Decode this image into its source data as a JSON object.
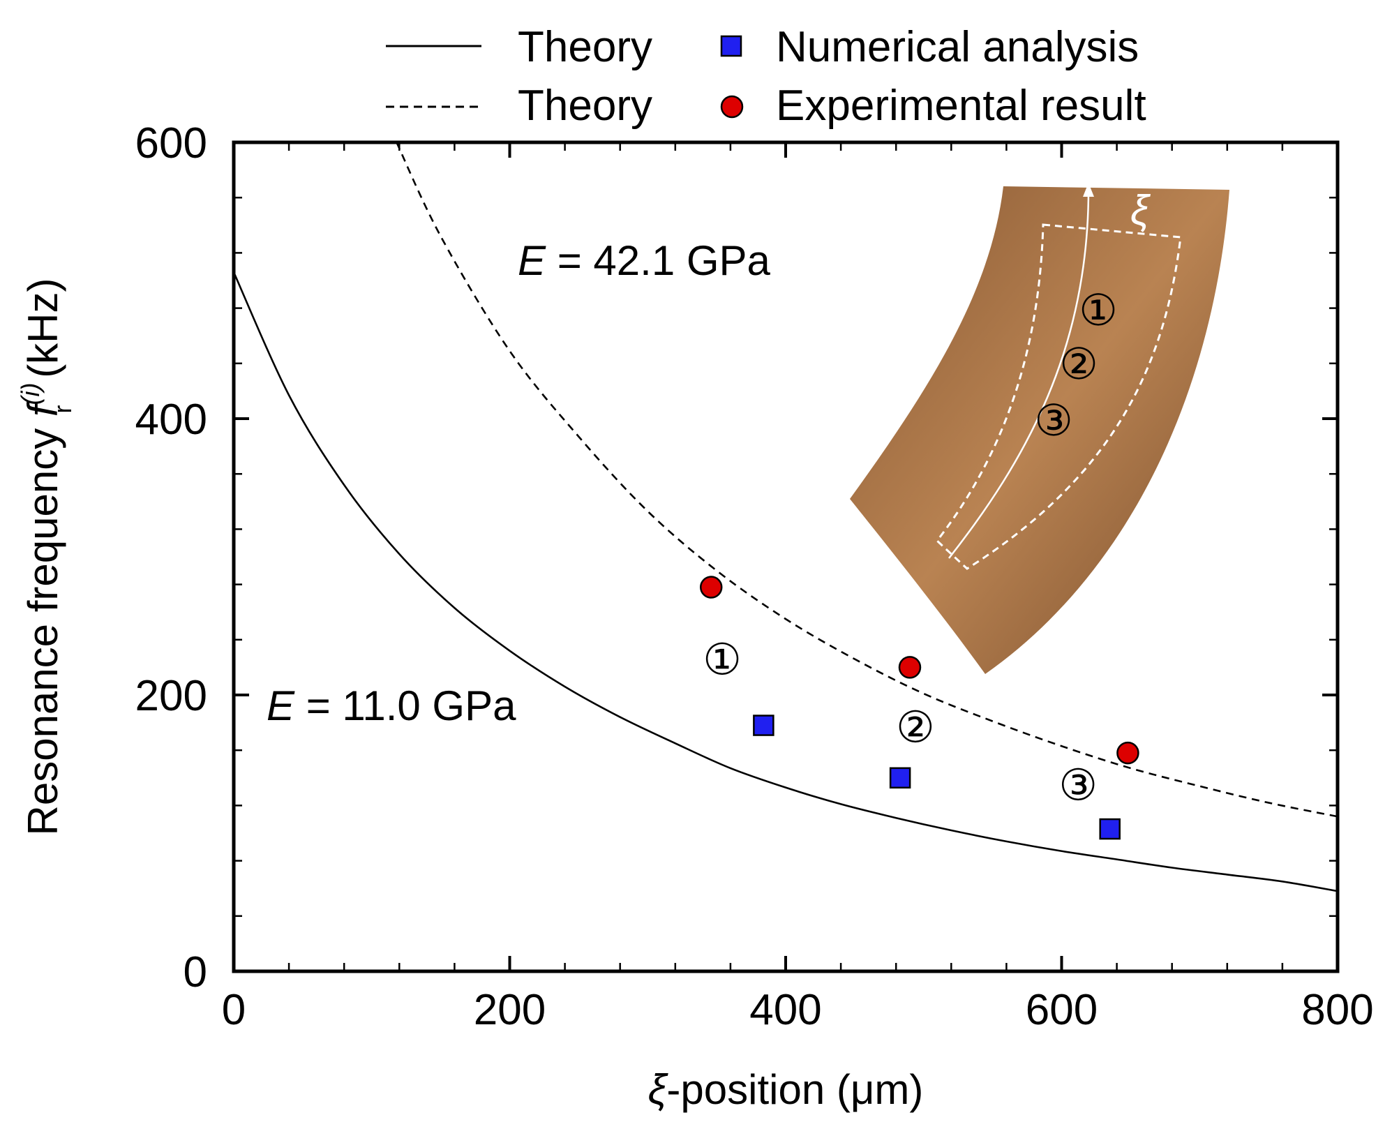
{
  "chart_data": {
    "type": "scatter",
    "xlabel_symbol": "ξ",
    "xlabel_rest": "-position (μm)",
    "ylabel_main": "Resonance frequency ",
    "ylabel_symbol": "f",
    "ylabel_sub": "r",
    "ylabel_sup": "(i)",
    "ylabel_unit": " (kHz)",
    "xlim": [
      0,
      800
    ],
    "ylim": [
      0,
      600
    ],
    "x_ticks": [
      0,
      200,
      400,
      600,
      800
    ],
    "y_ticks": [
      0,
      200,
      400,
      600
    ],
    "x_tick_labels": [
      "0",
      "200",
      "400",
      "600",
      "800"
    ],
    "y_tick_labels": [
      "0",
      "200",
      "400",
      "600"
    ],
    "x_minor_step": 40,
    "y_minor_step": 40,
    "series": [
      {
        "name": "Theory",
        "kind": "line",
        "style": "solid",
        "color": "#000000",
        "label_symbol": "E",
        "label_rest": " = 11.0 GPa",
        "x": [
          0,
          40,
          80,
          120,
          160,
          200,
          240,
          280,
          320,
          360,
          400,
          440,
          480,
          520,
          560,
          600,
          640,
          680,
          720,
          760,
          800
        ],
        "y": [
          506,
          417,
          352,
          302,
          263,
          232,
          206,
          184,
          165,
          147,
          133,
          121,
          111,
          102,
          94,
          87,
          81,
          75,
          70,
          65,
          58
        ]
      },
      {
        "name": "Theory",
        "kind": "line",
        "style": "dashed",
        "color": "#000000",
        "label_symbol": "E",
        "label_rest": " = 42.1 GPa",
        "x": [
          118,
          150,
          200,
          250,
          300,
          350,
          400,
          450,
          500,
          550,
          600,
          650,
          700,
          750,
          800
        ],
        "y": [
          600,
          532,
          449,
          387,
          333,
          290,
          255,
          226,
          201,
          181,
          163,
          147,
          134,
          122,
          112
        ]
      },
      {
        "name": "Numerical analysis",
        "kind": "marker",
        "marker": "square",
        "color": "#2020f0",
        "x": [
          384,
          483,
          635
        ],
        "y": [
          178,
          140,
          103
        ]
      },
      {
        "name": "Experimental result",
        "kind": "marker",
        "marker": "circle",
        "color": "#dd0000",
        "x": [
          346,
          490,
          648
        ],
        "y": [
          278,
          220,
          158
        ]
      }
    ],
    "point_labels": [
      {
        "text": "①",
        "x": 354,
        "y": 226
      },
      {
        "text": "②",
        "x": 494,
        "y": 177
      },
      {
        "text": "③",
        "x": 612,
        "y": 135
      }
    ],
    "legend_position": "top, above plot",
    "inset": {
      "description": "micrograph",
      "axis_symbol": "ξ",
      "labels": [
        "①",
        "②",
        "③"
      ],
      "color": "#b07a4c"
    }
  }
}
